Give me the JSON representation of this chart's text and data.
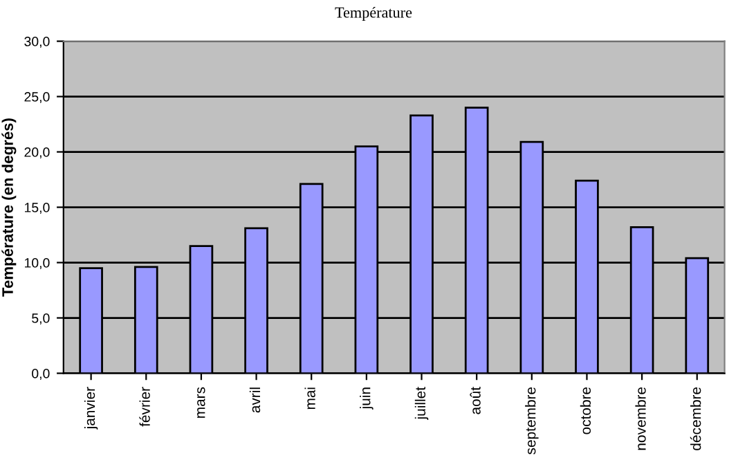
{
  "chart_data": {
    "type": "bar",
    "title": "Température",
    "ylabel": "Température (en degrés)",
    "categories": [
      "janvier",
      "février",
      "mars",
      "avril",
      "mai",
      "juin",
      "juillet",
      "août",
      "septembre",
      "octobre",
      "novembre",
      "décembre"
    ],
    "values": [
      9.5,
      9.6,
      11.5,
      13.1,
      17.1,
      20.5,
      23.3,
      24.0,
      20.9,
      17.4,
      13.2,
      10.4
    ],
    "color": "#9999ff",
    "ylim": [
      0,
      30
    ],
    "yticks": [
      {
        "value": 0,
        "label": "0,0"
      },
      {
        "value": 5,
        "label": "5,0"
      },
      {
        "value": 10,
        "label": "10,0"
      },
      {
        "value": 15,
        "label": "15,0"
      },
      {
        "value": 20,
        "label": "20,0"
      },
      {
        "value": 25,
        "label": "25,0"
      },
      {
        "value": 30,
        "label": "30,0"
      }
    ],
    "grid": "y",
    "legend": false
  }
}
